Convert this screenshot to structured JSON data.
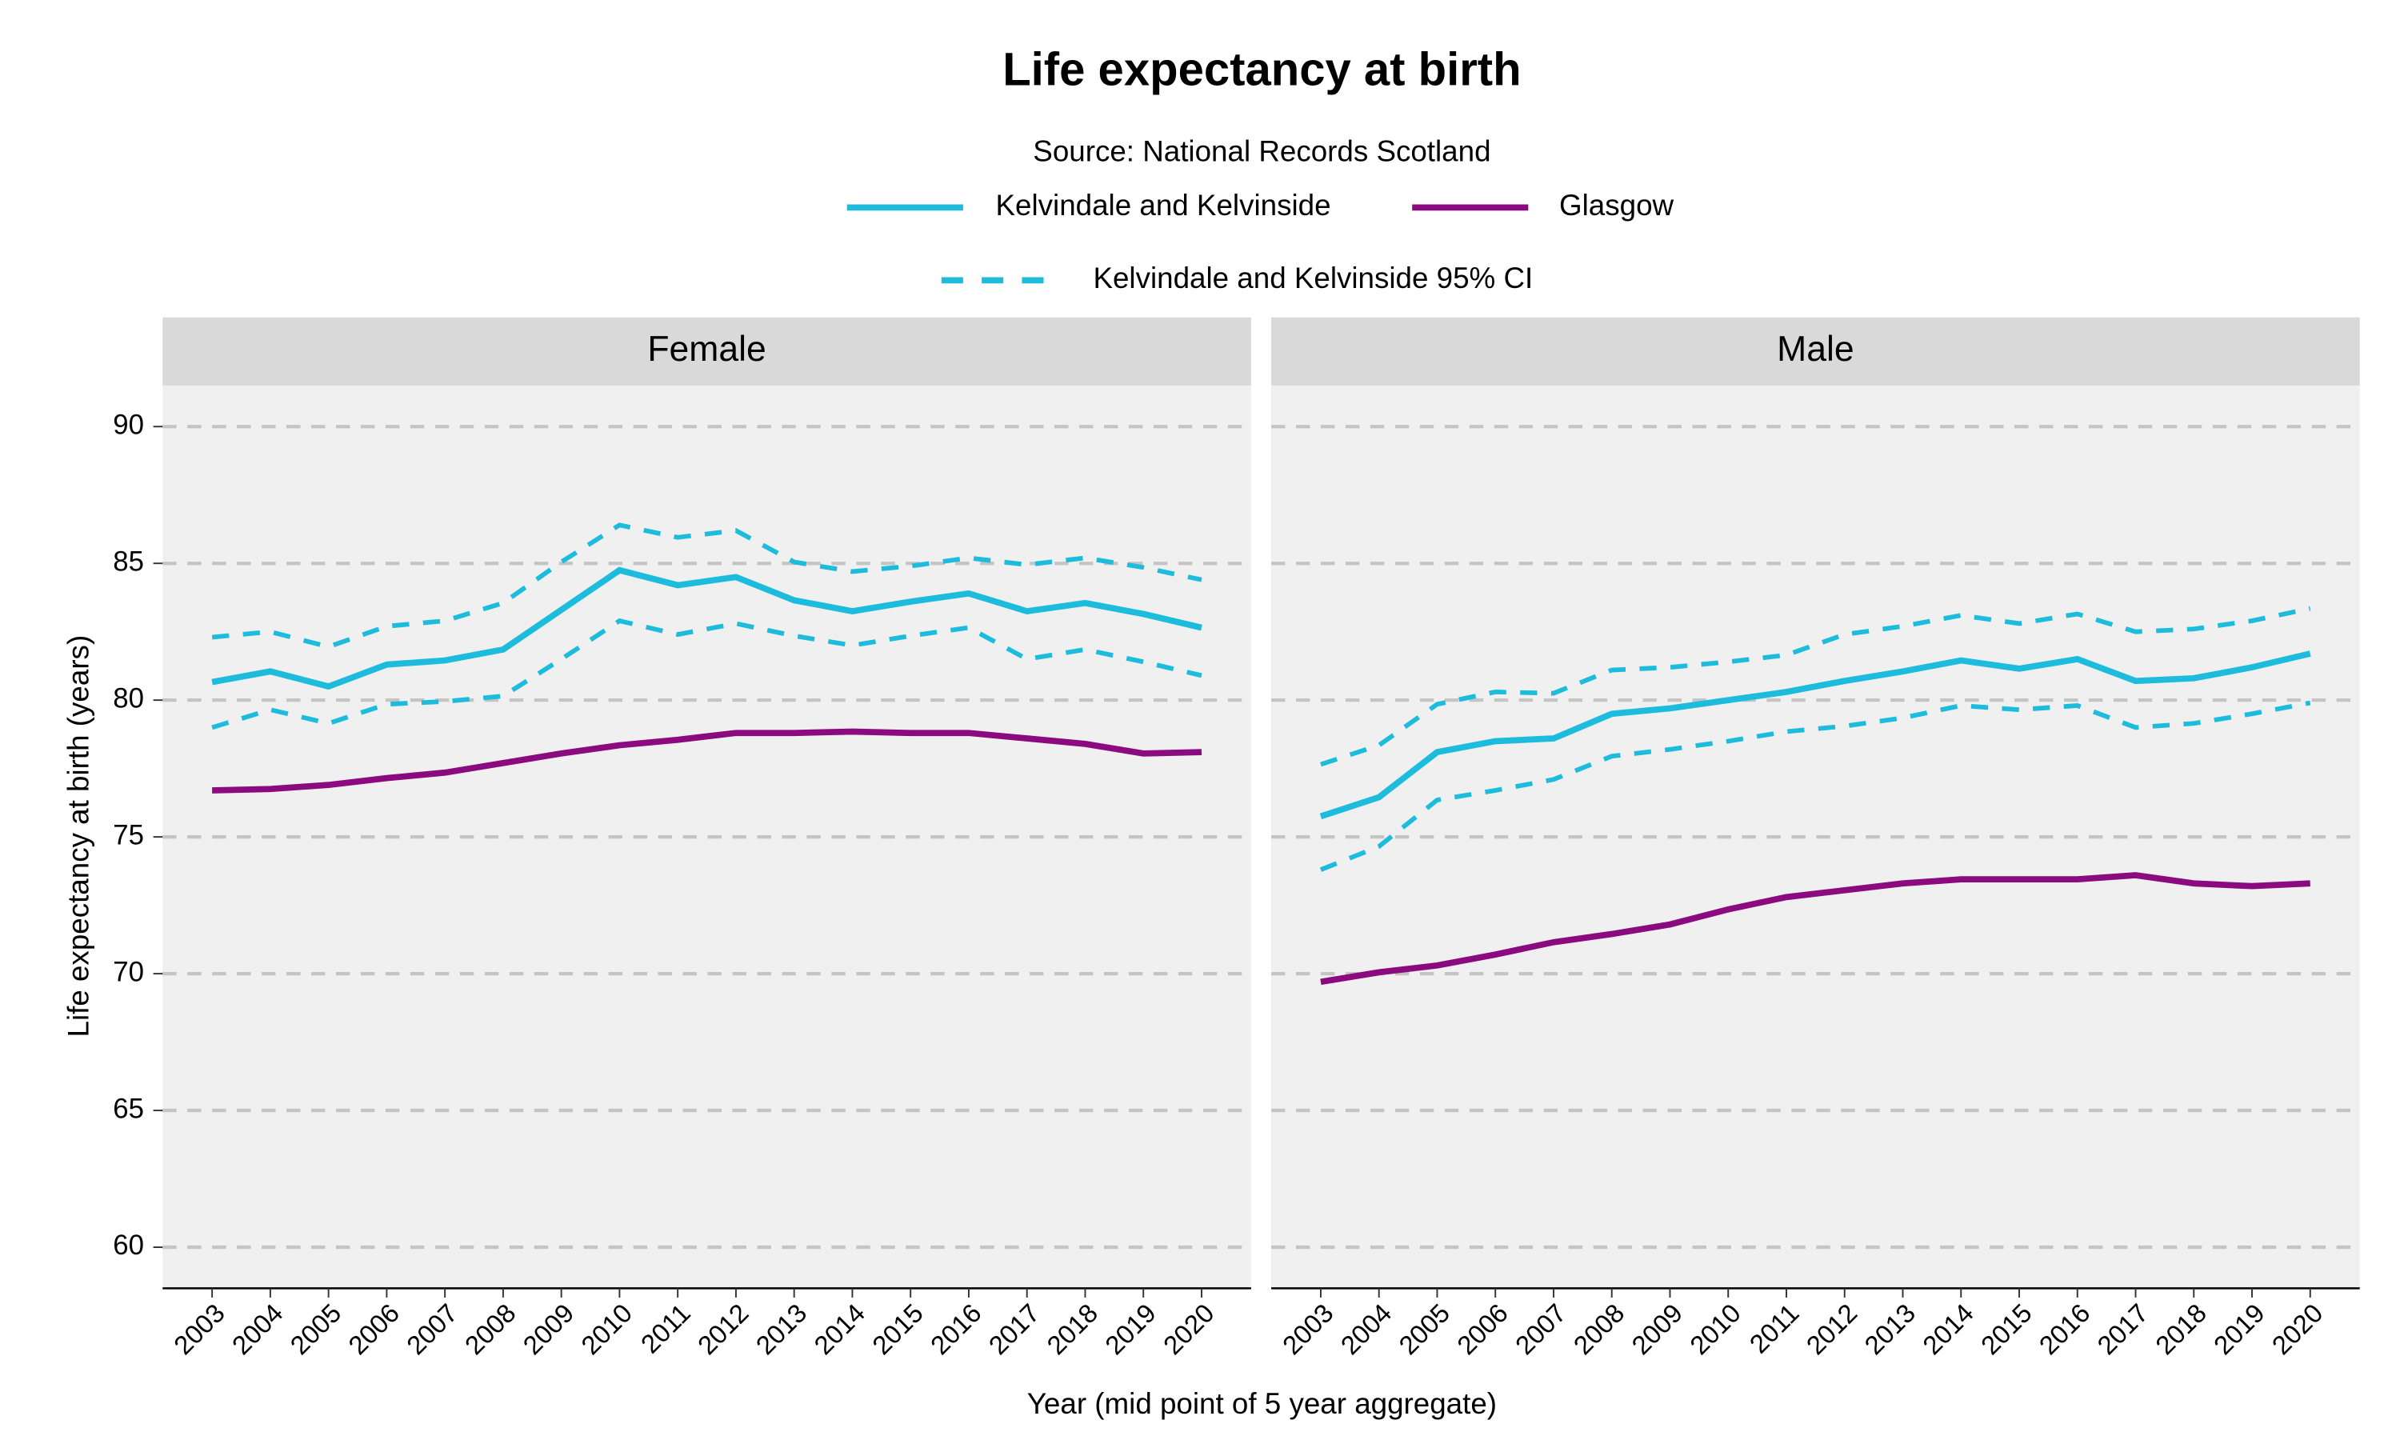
{
  "chart_data": {
    "type": "line",
    "title": "Life expectancy at birth",
    "subtitle": "Source: National Records Scotland",
    "x_label": "Year (mid point of 5 year aggregate)",
    "y_label": "Life expectancy at birth (years)",
    "x": [
      2003,
      2004,
      2005,
      2006,
      2007,
      2008,
      2009,
      2010,
      2011,
      2012,
      2013,
      2014,
      2015,
      2016,
      2017,
      2018,
      2019,
      2020
    ],
    "ylim": [
      58.5,
      91.5
    ],
    "yticks": [
      60,
      65,
      70,
      75,
      80,
      85,
      90
    ],
    "grid": true,
    "panels": [
      {
        "title": "Female",
        "series": [
          {
            "name": "Kelvindale and Kelvinside",
            "color": "#1dbcdd",
            "values": [
              80.66,
              81.05,
              80.5,
              81.3,
              81.45,
              81.85,
              83.3,
              84.75,
              84.2,
              84.5,
              83.65,
              83.25,
              83.6,
              83.9,
              83.25,
              83.55,
              83.15,
              82.65
            ],
            "ci_name": "Kelvindale and Kelvinside 95% CI",
            "ci_lower": [
              79.0,
              79.65,
              79.15,
              79.85,
              79.95,
              80.15,
              81.5,
              82.9,
              82.4,
              82.8,
              82.35,
              82.0,
              82.35,
              82.65,
              81.5,
              81.85,
              81.4,
              80.9
            ],
            "ci_upper": [
              82.3,
              82.5,
              81.95,
              82.7,
              82.9,
              83.55,
              85.05,
              86.4,
              85.95,
              86.2,
              85.05,
              84.7,
              84.9,
              85.2,
              84.95,
              85.2,
              84.85,
              84.4
            ]
          },
          {
            "name": "Glasgow",
            "color": "#8b0a7f",
            "values": [
              76.7,
              76.75,
              76.9,
              77.15,
              77.35,
              77.7,
              78.05,
              78.35,
              78.55,
              78.8,
              78.8,
              78.85,
              78.8,
              78.8,
              78.6,
              78.4,
              78.05,
              78.1
            ]
          }
        ]
      },
      {
        "title": "Male",
        "series": [
          {
            "name": "Kelvindale and Kelvinside",
            "color": "#1dbcdd",
            "values": [
              75.75,
              76.45,
              78.1,
              78.5,
              78.6,
              79.5,
              79.7,
              80.0,
              80.3,
              80.7,
              81.05,
              81.45,
              81.15,
              81.5,
              80.7,
              80.8,
              81.2,
              81.7
            ],
            "ci_name": "Kelvindale and Kelvinside 95% CI",
            "ci_lower": [
              73.8,
              74.65,
              76.35,
              76.7,
              77.1,
              77.95,
              78.2,
              78.5,
              78.85,
              79.05,
              79.35,
              79.8,
              79.65,
              79.8,
              79.0,
              79.15,
              79.5,
              79.9
            ],
            "ci_upper": [
              77.65,
              78.35,
              79.85,
              80.3,
              80.25,
              81.1,
              81.2,
              81.4,
              81.65,
              82.4,
              82.7,
              83.1,
              82.8,
              83.15,
              82.5,
              82.6,
              82.9,
              83.35
            ]
          },
          {
            "name": "Glasgow",
            "color": "#8b0a7f",
            "values": [
              69.7,
              70.05,
              70.3,
              70.7,
              71.15,
              71.45,
              71.8,
              72.35,
              72.8,
              73.05,
              73.3,
              73.45,
              73.45,
              73.45,
              73.6,
              73.3,
              73.2,
              73.3
            ]
          }
        ]
      }
    ]
  }
}
